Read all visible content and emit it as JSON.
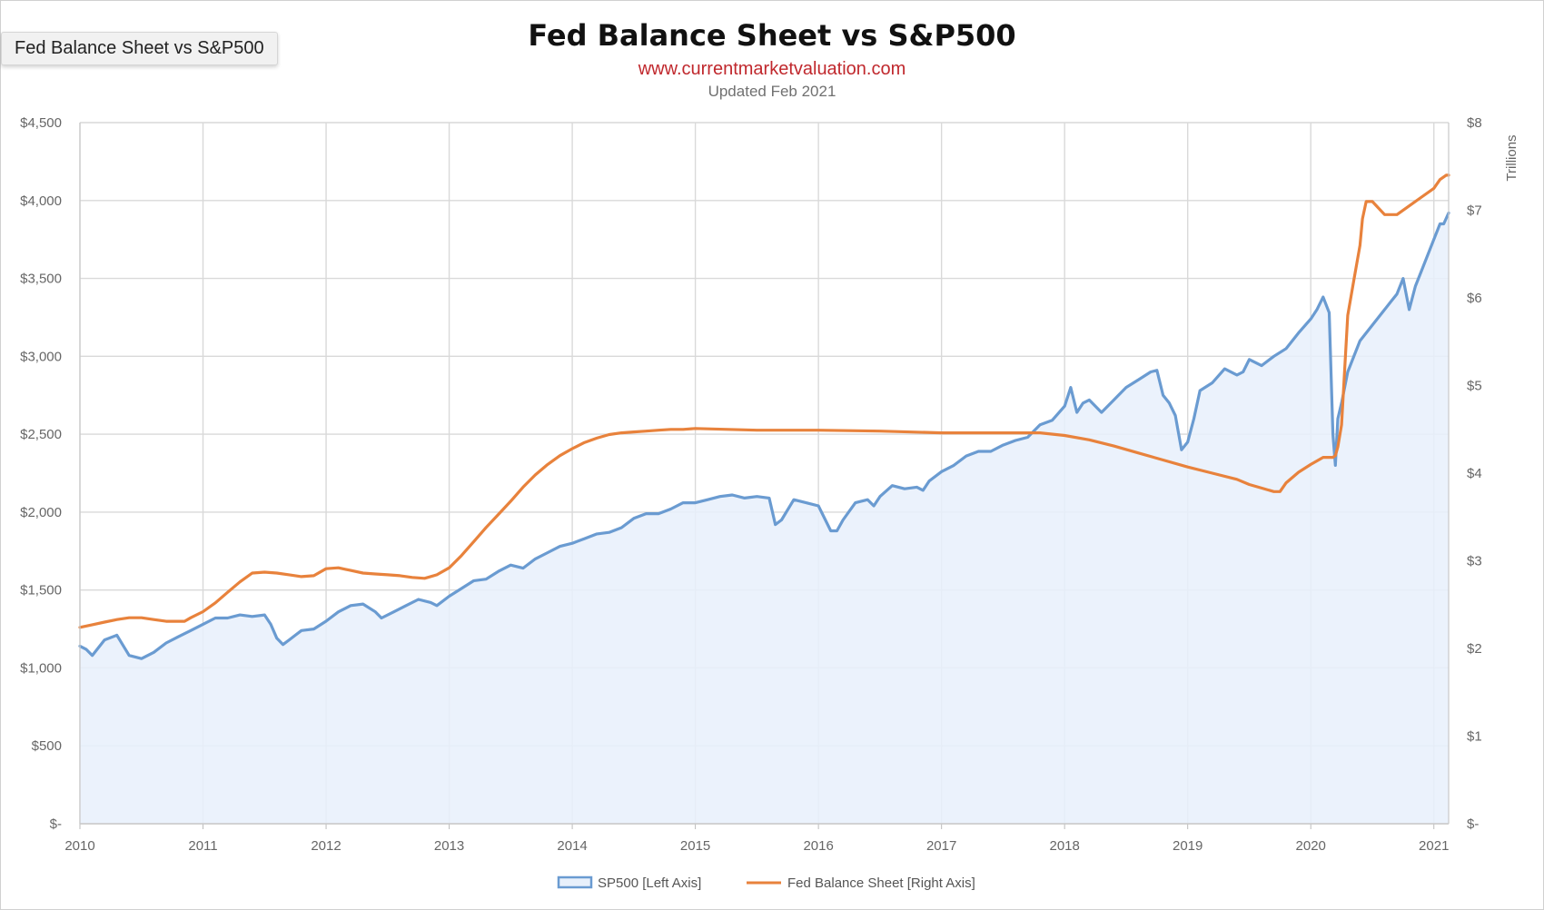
{
  "window": {
    "tooltip": "Fed Balance Sheet vs S&P500"
  },
  "chart_data": {
    "type": "line",
    "title": "Fed Balance Sheet vs S&P500",
    "subtitle": "www.currentmarketvaluation.com",
    "note": "Updated Feb 2021",
    "ylabel_right": "Trillions",
    "xlim": [
      2010,
      2021.12
    ],
    "ylim_left": [
      0,
      4500
    ],
    "ylim_right": [
      0,
      8
    ],
    "x_ticks": [
      "2010",
      "2011",
      "2012",
      "2013",
      "2014",
      "2015",
      "2016",
      "2017",
      "2018",
      "2019",
      "2020",
      "2021"
    ],
    "y_ticks_left": [
      "$-",
      "$500",
      "$1,000",
      "$1,500",
      "$2,000",
      "$2,500",
      "$3,000",
      "$3,500",
      "$4,000",
      "$4,500"
    ],
    "y_ticks_right": [
      "$-",
      "$1",
      "$2",
      "$3",
      "$4",
      "$5",
      "$6",
      "$7",
      "$8"
    ],
    "grid": true,
    "legend_position": "bottom",
    "series": [
      {
        "name": "SP500 [Left Axis]",
        "axis": "left",
        "style": "area",
        "color": "#6a9bd1",
        "fill": "#e8f0fb",
        "x": [
          2010.0,
          2010.05,
          2010.1,
          2010.2,
          2010.3,
          2010.4,
          2010.5,
          2010.6,
          2010.7,
          2010.8,
          2010.9,
          2011.0,
          2011.1,
          2011.2,
          2011.3,
          2011.4,
          2011.5,
          2011.55,
          2011.6,
          2011.65,
          2011.7,
          2011.75,
          2011.8,
          2011.9,
          2012.0,
          2012.1,
          2012.2,
          2012.3,
          2012.4,
          2012.45,
          2012.55,
          2012.65,
          2012.75,
          2012.85,
          2012.9,
          2013.0,
          2013.1,
          2013.2,
          2013.3,
          2013.4,
          2013.5,
          2013.6,
          2013.7,
          2013.8,
          2013.9,
          2014.0,
          2014.1,
          2014.2,
          2014.3,
          2014.4,
          2014.5,
          2014.6,
          2014.7,
          2014.8,
          2014.9,
          2015.0,
          2015.1,
          2015.2,
          2015.3,
          2015.4,
          2015.5,
          2015.6,
          2015.65,
          2015.7,
          2015.8,
          2015.9,
          2016.0,
          2016.1,
          2016.15,
          2016.2,
          2016.3,
          2016.4,
          2016.45,
          2016.5,
          2016.6,
          2016.7,
          2016.8,
          2016.85,
          2016.9,
          2017.0,
          2017.1,
          2017.2,
          2017.3,
          2017.4,
          2017.5,
          2017.6,
          2017.7,
          2017.8,
          2017.9,
          2018.0,
          2018.05,
          2018.1,
          2018.15,
          2018.2,
          2018.3,
          2018.4,
          2018.5,
          2018.6,
          2018.7,
          2018.75,
          2018.8,
          2018.85,
          2018.9,
          2018.95,
          2019.0,
          2019.05,
          2019.1,
          2019.2,
          2019.3,
          2019.4,
          2019.45,
          2019.5,
          2019.6,
          2019.7,
          2019.8,
          2019.9,
          2020.0,
          2020.05,
          2020.1,
          2020.15,
          2020.18,
          2020.2,
          2020.22,
          2020.25,
          2020.3,
          2020.4,
          2020.5,
          2020.55,
          2020.6,
          2020.65,
          2020.7,
          2020.75,
          2020.8,
          2020.85,
          2020.9,
          2021.0,
          2021.05,
          2021.08,
          2021.12
        ],
        "values": [
          1140,
          1120,
          1080,
          1180,
          1210,
          1080,
          1060,
          1100,
          1160,
          1200,
          1240,
          1280,
          1320,
          1320,
          1340,
          1330,
          1340,
          1280,
          1190,
          1150,
          1180,
          1210,
          1240,
          1250,
          1300,
          1360,
          1400,
          1410,
          1360,
          1320,
          1360,
          1400,
          1440,
          1420,
          1400,
          1460,
          1510,
          1560,
          1570,
          1620,
          1660,
          1640,
          1700,
          1740,
          1780,
          1800,
          1830,
          1860,
          1870,
          1900,
          1960,
          1990,
          1990,
          2020,
          2060,
          2060,
          2080,
          2100,
          2110,
          2090,
          2100,
          2090,
          1920,
          1950,
          2080,
          2060,
          2040,
          1880,
          1880,
          1950,
          2060,
          2080,
          2040,
          2100,
          2170,
          2150,
          2160,
          2140,
          2200,
          2260,
          2300,
          2360,
          2390,
          2390,
          2430,
          2460,
          2480,
          2560,
          2590,
          2680,
          2800,
          2640,
          2700,
          2720,
          2640,
          2720,
          2800,
          2850,
          2900,
          2910,
          2750,
          2700,
          2620,
          2400,
          2450,
          2600,
          2780,
          2830,
          2920,
          2880,
          2900,
          2980,
          2940,
          3000,
          3050,
          3150,
          3240,
          3300,
          3380,
          3280,
          2500,
          2300,
          2600,
          2700,
          2900,
          3100,
          3200,
          3250,
          3300,
          3350,
          3400,
          3500,
          3300,
          3450,
          3550,
          3750,
          3850,
          3850,
          3920
        ]
      },
      {
        "name": "Fed Balance Sheet [Right Axis]",
        "axis": "right",
        "style": "line",
        "color": "#e8823c",
        "x": [
          2010.0,
          2010.1,
          2010.2,
          2010.3,
          2010.4,
          2010.5,
          2010.6,
          2010.7,
          2010.8,
          2010.85,
          2010.9,
          2011.0,
          2011.1,
          2011.2,
          2011.3,
          2011.4,
          2011.5,
          2011.6,
          2011.7,
          2011.8,
          2011.9,
          2012.0,
          2012.1,
          2012.2,
          2012.3,
          2012.4,
          2012.5,
          2012.6,
          2012.7,
          2012.8,
          2012.9,
          2013.0,
          2013.1,
          2013.2,
          2013.3,
          2013.4,
          2013.5,
          2013.6,
          2013.7,
          2013.8,
          2013.9,
          2014.0,
          2014.1,
          2014.2,
          2014.3,
          2014.4,
          2014.5,
          2014.6,
          2014.7,
          2014.8,
          2014.9,
          2015.0,
          2015.5,
          2016.0,
          2016.5,
          2017.0,
          2017.5,
          2017.8,
          2018.0,
          2018.2,
          2018.4,
          2018.6,
          2018.8,
          2019.0,
          2019.2,
          2019.4,
          2019.5,
          2019.6,
          2019.7,
          2019.75,
          2019.8,
          2019.9,
          2020.0,
          2020.1,
          2020.18,
          2020.2,
          2020.22,
          2020.25,
          2020.3,
          2020.35,
          2020.4,
          2020.42,
          2020.45,
          2020.5,
          2020.6,
          2020.7,
          2020.8,
          2020.9,
          2021.0,
          2021.05,
          2021.1,
          2021.12
        ],
        "values": [
          2.24,
          2.27,
          2.3,
          2.33,
          2.35,
          2.35,
          2.33,
          2.31,
          2.31,
          2.31,
          2.35,
          2.42,
          2.52,
          2.64,
          2.76,
          2.86,
          2.87,
          2.86,
          2.84,
          2.82,
          2.83,
          2.91,
          2.92,
          2.89,
          2.86,
          2.85,
          2.84,
          2.83,
          2.81,
          2.8,
          2.84,
          2.92,
          3.06,
          3.22,
          3.38,
          3.53,
          3.68,
          3.84,
          3.98,
          4.1,
          4.2,
          4.28,
          4.35,
          4.4,
          4.44,
          4.46,
          4.47,
          4.48,
          4.49,
          4.5,
          4.5,
          4.51,
          4.49,
          4.49,
          4.48,
          4.46,
          4.46,
          4.46,
          4.43,
          4.38,
          4.31,
          4.23,
          4.15,
          4.07,
          4.0,
          3.93,
          3.87,
          3.83,
          3.79,
          3.79,
          3.89,
          4.01,
          4.1,
          4.18,
          4.18,
          4.2,
          4.3,
          4.55,
          5.8,
          6.2,
          6.6,
          6.9,
          7.1,
          7.1,
          6.95,
          6.95,
          7.05,
          7.15,
          7.25,
          7.35,
          7.4,
          7.4
        ]
      }
    ]
  }
}
